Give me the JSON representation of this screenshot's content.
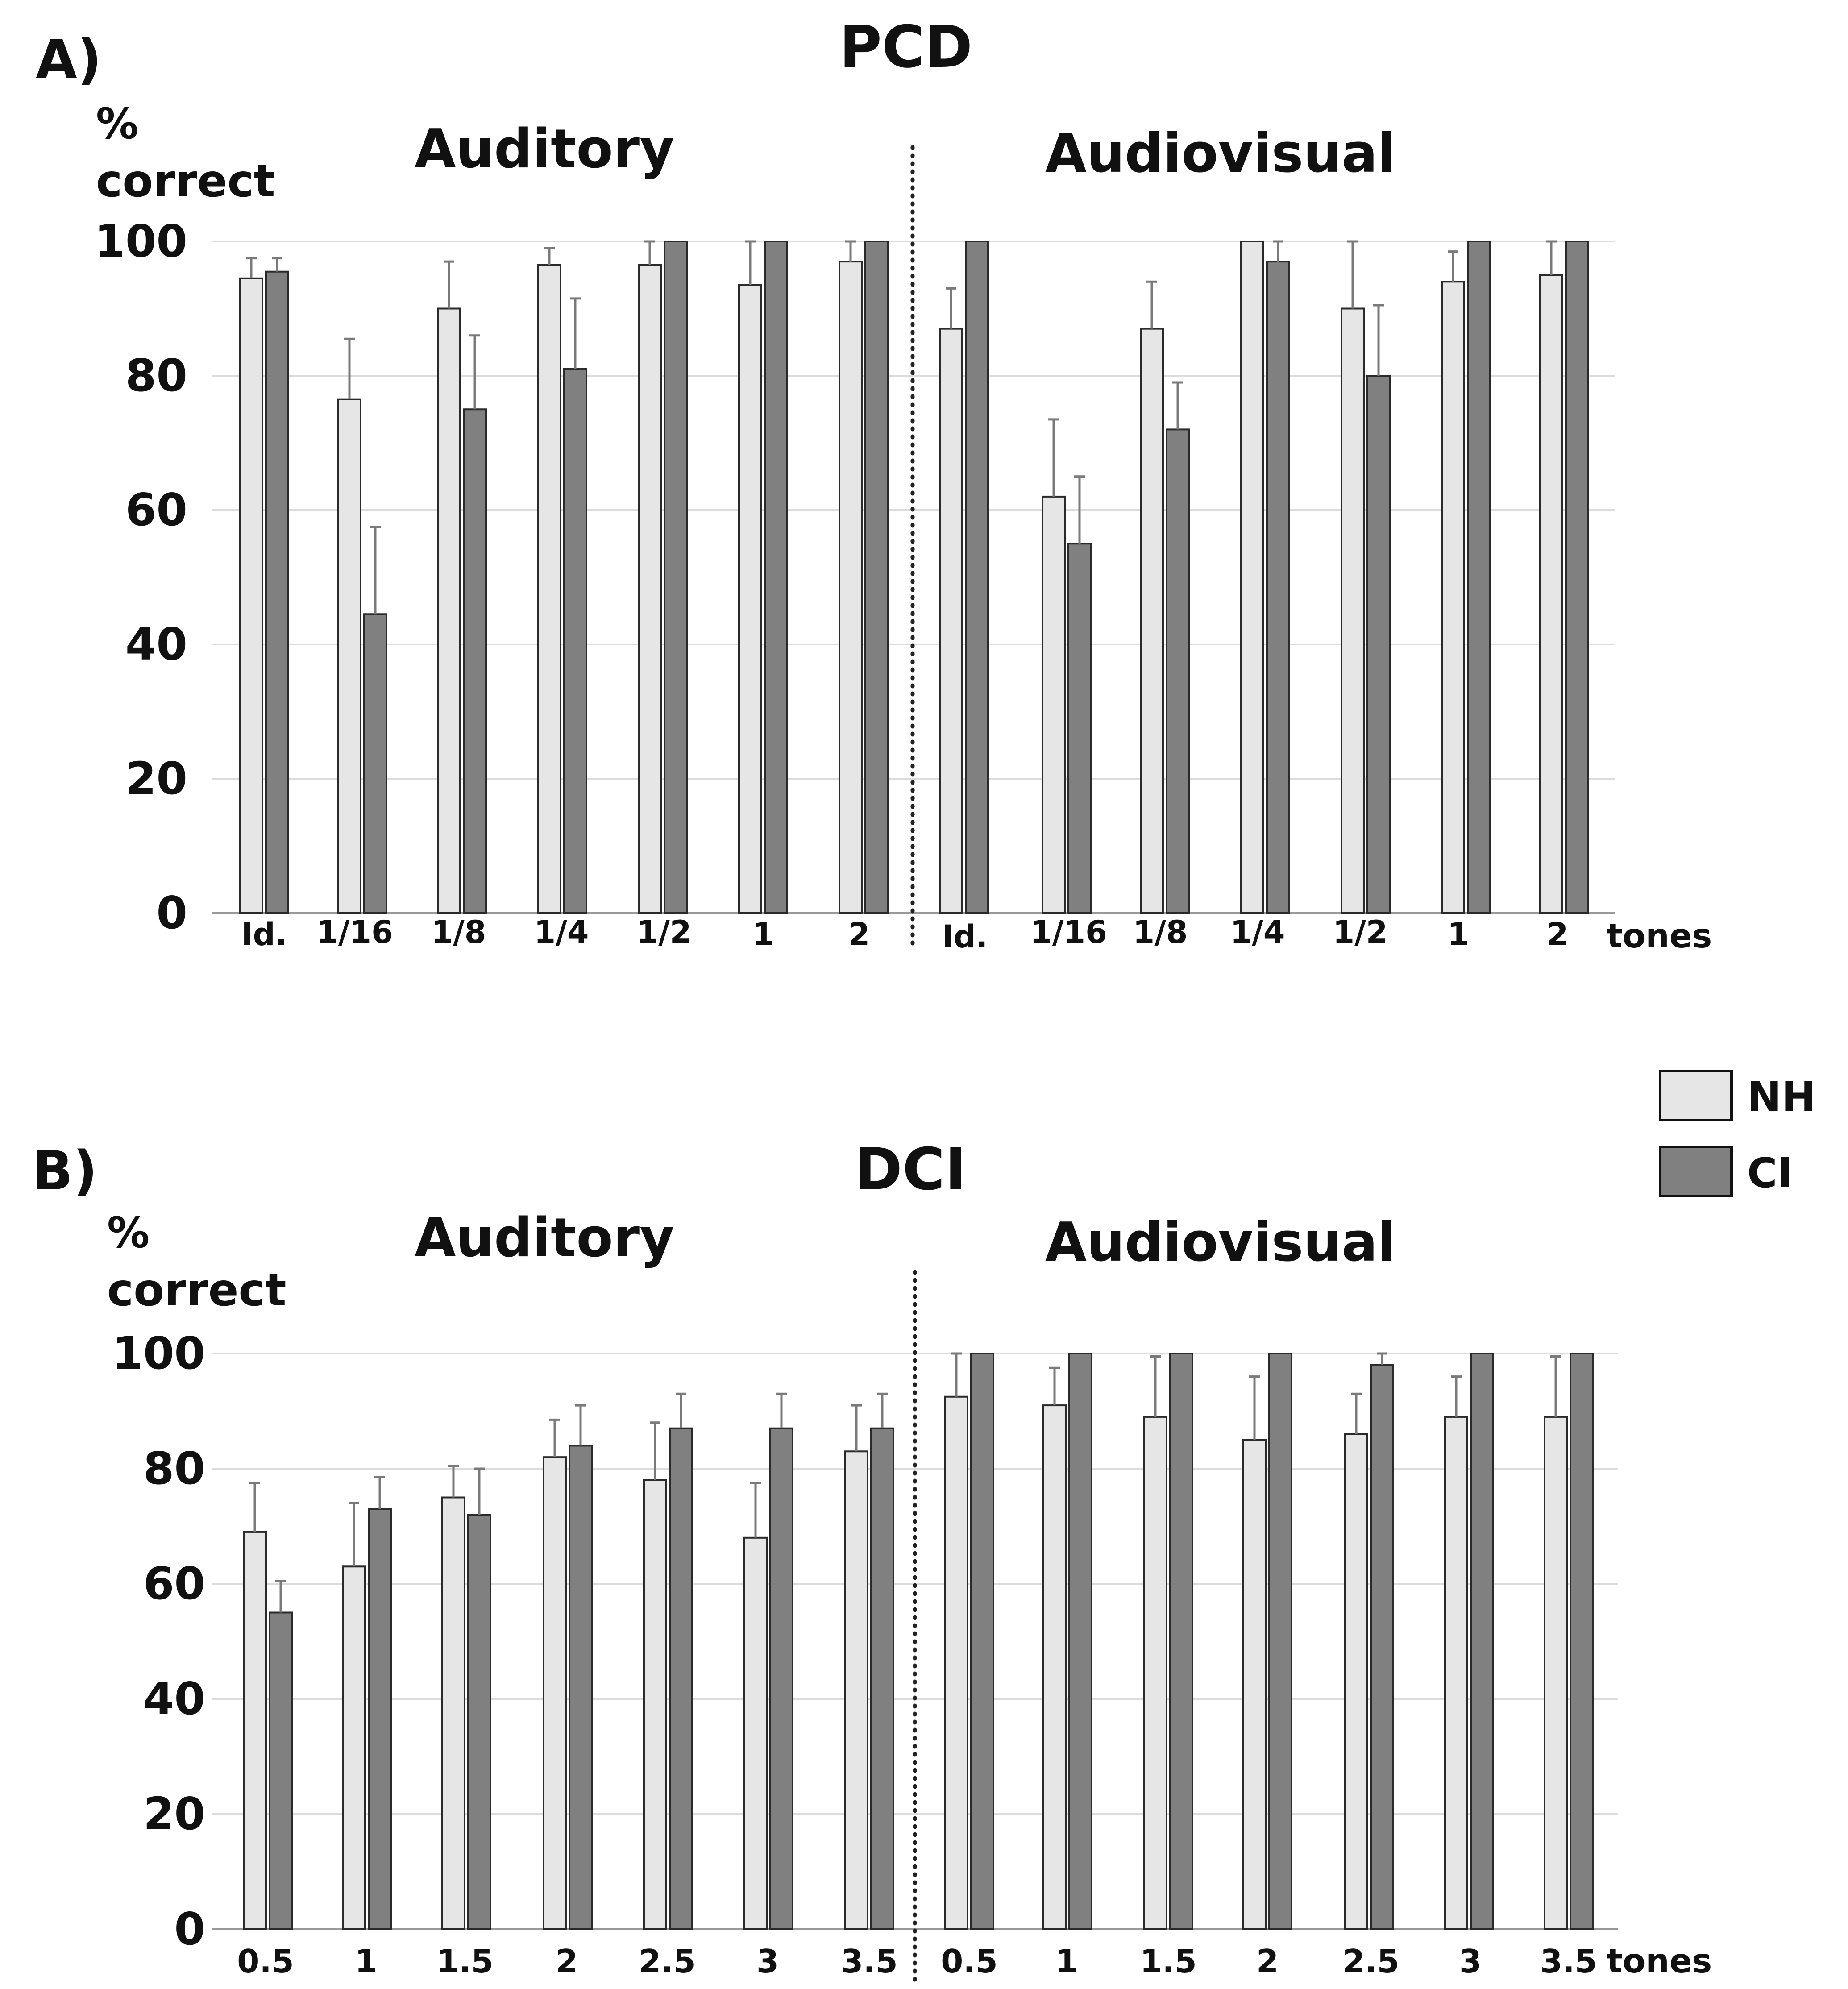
{
  "legend": {
    "entries": [
      {
        "name": "NH",
        "color": "#e6e6e6"
      },
      {
        "name": "CI",
        "color": "#808080"
      }
    ]
  },
  "chart_data": [
    {
      "type": "bar",
      "panel_label": "A)",
      "title": "PCD",
      "ylabel_line1": "%",
      "ylabel_line2": "correct",
      "xunit": "tones",
      "ylim": [
        0,
        100
      ],
      "yticks": [
        0,
        20,
        40,
        60,
        80,
        100
      ],
      "grid": true,
      "sections": [
        {
          "title": "Auditory",
          "categories": [
            "Id.",
            "1/16",
            "1/8",
            "1/4",
            "1/2",
            "1",
            "2"
          ],
          "series": [
            {
              "name": "NH",
              "values": [
                94.5,
                76.5,
                90,
                96.5,
                96.5,
                93.5,
                97
              ],
              "errors": [
                3,
                9,
                7,
                2.5,
                3.5,
                6.5,
                3
              ]
            },
            {
              "name": "CI",
              "values": [
                95.5,
                44.5,
                75,
                81,
                100,
                100,
                100
              ],
              "errors": [
                2,
                13,
                11,
                10.5,
                0,
                0,
                0
              ]
            }
          ]
        },
        {
          "title": "Audiovisual",
          "categories": [
            "Id.",
            "1/16",
            "1/8",
            "1/4",
            "1/2",
            "1",
            "2"
          ],
          "series": [
            {
              "name": "NH",
              "values": [
                87,
                62,
                87,
                100,
                90,
                94,
                95
              ],
              "errors": [
                6,
                11.5,
                7,
                0,
                10,
                4.5,
                5
              ]
            },
            {
              "name": "CI",
              "values": [
                100,
                55,
                72,
                97,
                80,
                100,
                100
              ],
              "errors": [
                0,
                10,
                7,
                3,
                10.5,
                0,
                0
              ]
            }
          ]
        }
      ]
    },
    {
      "type": "bar",
      "panel_label": "B)",
      "title": "DCI",
      "ylabel_line1": "%",
      "ylabel_line2": "correct",
      "xunit": "tones",
      "ylim": [
        0,
        100
      ],
      "yticks": [
        0,
        20,
        40,
        60,
        80,
        100
      ],
      "grid": true,
      "sections": [
        {
          "title": "Auditory",
          "categories": [
            "0.5",
            "1",
            "1.5",
            "2",
            "2.5",
            "3",
            "3.5"
          ],
          "series": [
            {
              "name": "NH",
              "values": [
                69,
                63,
                75,
                82,
                78,
                68,
                83
              ],
              "errors": [
                8.5,
                11,
                5.5,
                6.5,
                10,
                9.5,
                8
              ]
            },
            {
              "name": "CI",
              "values": [
                55,
                73,
                72,
                84,
                87,
                87,
                87
              ],
              "errors": [
                5.5,
                5.5,
                8,
                7,
                6,
                6,
                6
              ]
            }
          ]
        },
        {
          "title": "Audiovisual",
          "categories": [
            "0.5",
            "1",
            "1.5",
            "2",
            "2.5",
            "3",
            "3.5"
          ],
          "series": [
            {
              "name": "NH",
              "values": [
                92.5,
                91,
                89,
                85,
                86,
                89,
                89
              ],
              "errors": [
                7.5,
                6.5,
                10.5,
                11,
                7,
                7,
                10.5
              ]
            },
            {
              "name": "CI",
              "values": [
                100,
                100,
                100,
                100,
                98,
                100,
                100
              ],
              "errors": [
                0,
                0,
                0,
                0,
                2,
                0,
                0
              ]
            }
          ]
        }
      ]
    }
  ]
}
